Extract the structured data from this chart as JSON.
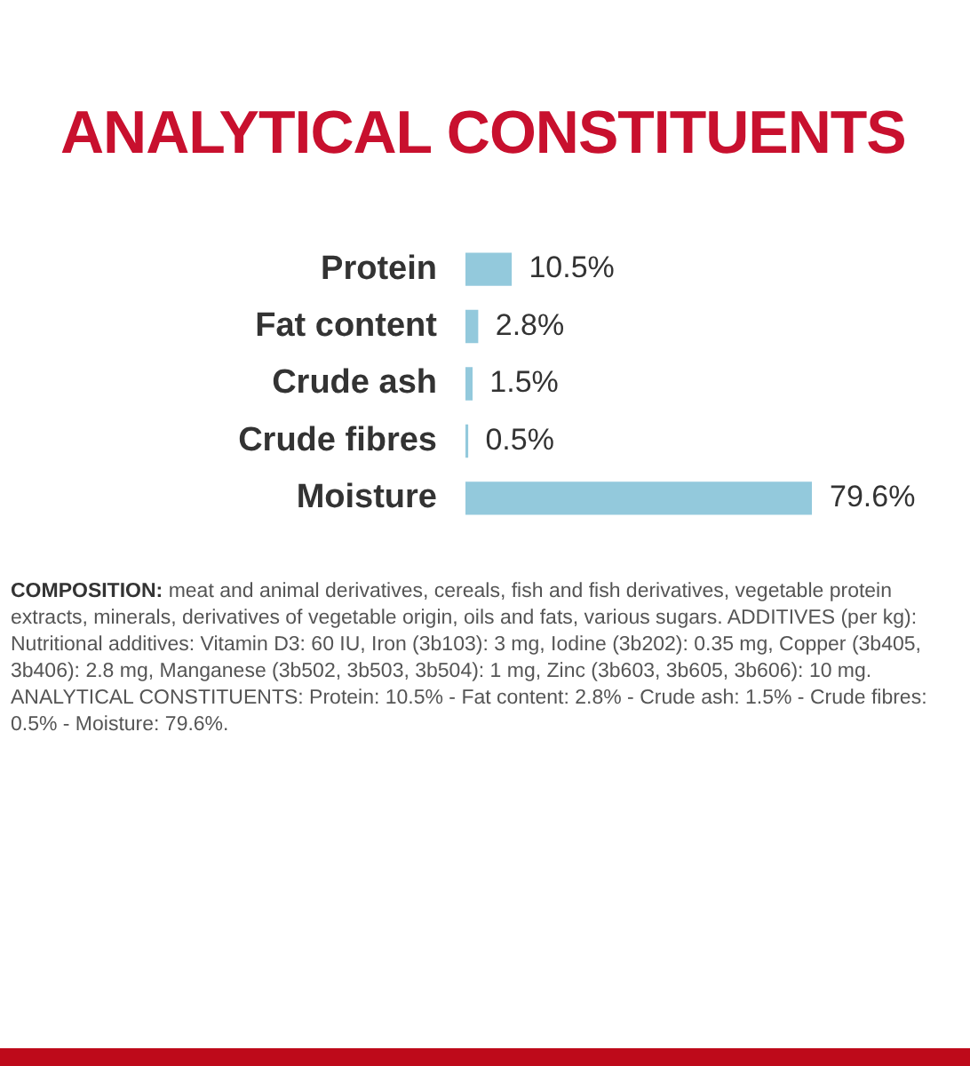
{
  "chart_data": {
    "type": "bar",
    "orientation": "horizontal",
    "title": "ANALYTICAL CONSTITUENTS",
    "categories": [
      "Protein",
      "Fat content",
      "Crude ash",
      "Crude fibres",
      "Moisture"
    ],
    "values": [
      10.5,
      2.8,
      1.5,
      0.5,
      79.6
    ],
    "value_labels": [
      "10.5%",
      "2.8%",
      "1.5%",
      "0.5%",
      "79.6%"
    ],
    "color": "#93c9dc",
    "tick_labels": "y",
    "annotations": [
      "COMPOSITION: meat and animal derivatives, cereals, fish and fish derivatives, vegetable protein extracts, minerals, derivatives of vegetable origin, oils and fats, various sugars. ADDITIVES (per kg): Nutritional additives: Vitamin D3: 60 IU, Iron (3b103): 3 mg, Iodine (3b202): 0.35 mg, Copper (3b405, 3b406): 2.8 mg, Manganese (3b502, 3b503, 3b504): 1 mg, Zinc (3b603, 3b605, 3b606): 10 mg. ANALYTICAL CONSTITUENTS: Protein: 10.5% - Fat content: 2.8% - Crude ash: 1.5% - Crude fibres: 0.5% - Moisture: 79.6%."
    ]
  }
}
